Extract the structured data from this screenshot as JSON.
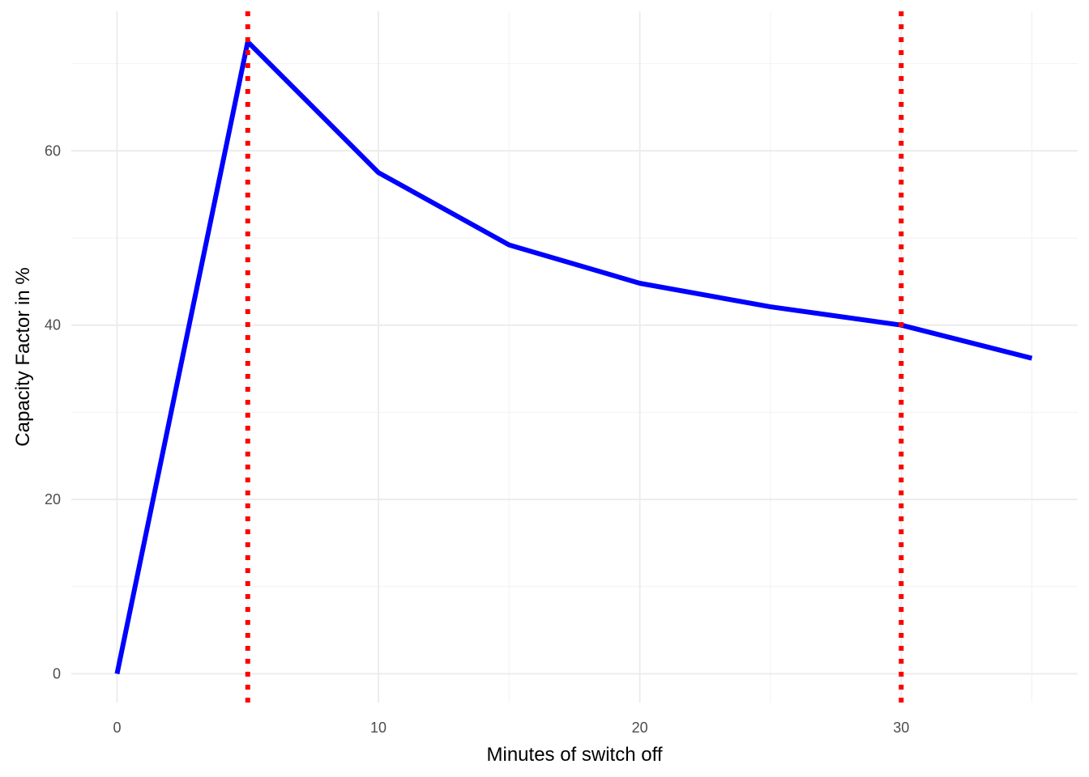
{
  "chart_data": {
    "type": "line",
    "title": "",
    "xlabel": "Minutes of switch off",
    "ylabel": "Capacity Factor in %",
    "xlim": [
      -1.75,
      36.75
    ],
    "ylim": [
      -3.3,
      76.0
    ],
    "x_major_ticks": [
      0,
      10,
      20,
      30
    ],
    "x_tick_labels": [
      "0",
      "10",
      "20",
      "30"
    ],
    "x_minor_ticks": [
      5,
      15,
      25,
      35
    ],
    "y_major_ticks": [
      0,
      20,
      40,
      60
    ],
    "y_tick_labels": [
      "0",
      "20",
      "40",
      "60"
    ],
    "y_minor_ticks": [
      10,
      30,
      50,
      70
    ],
    "grid": true,
    "legend": "none",
    "series": [
      {
        "color": "#0000ff",
        "x": [
          0,
          5,
          10,
          15,
          20,
          25,
          30,
          35
        ],
        "y": [
          0,
          72.5,
          57.5,
          49.2,
          44.8,
          42.1,
          40.0,
          36.2
        ]
      }
    ],
    "vlines": [
      {
        "x": 5,
        "color": "#ff0000",
        "style": "dotted"
      },
      {
        "x": 30,
        "color": "#ff0000",
        "style": "dotted"
      }
    ]
  }
}
